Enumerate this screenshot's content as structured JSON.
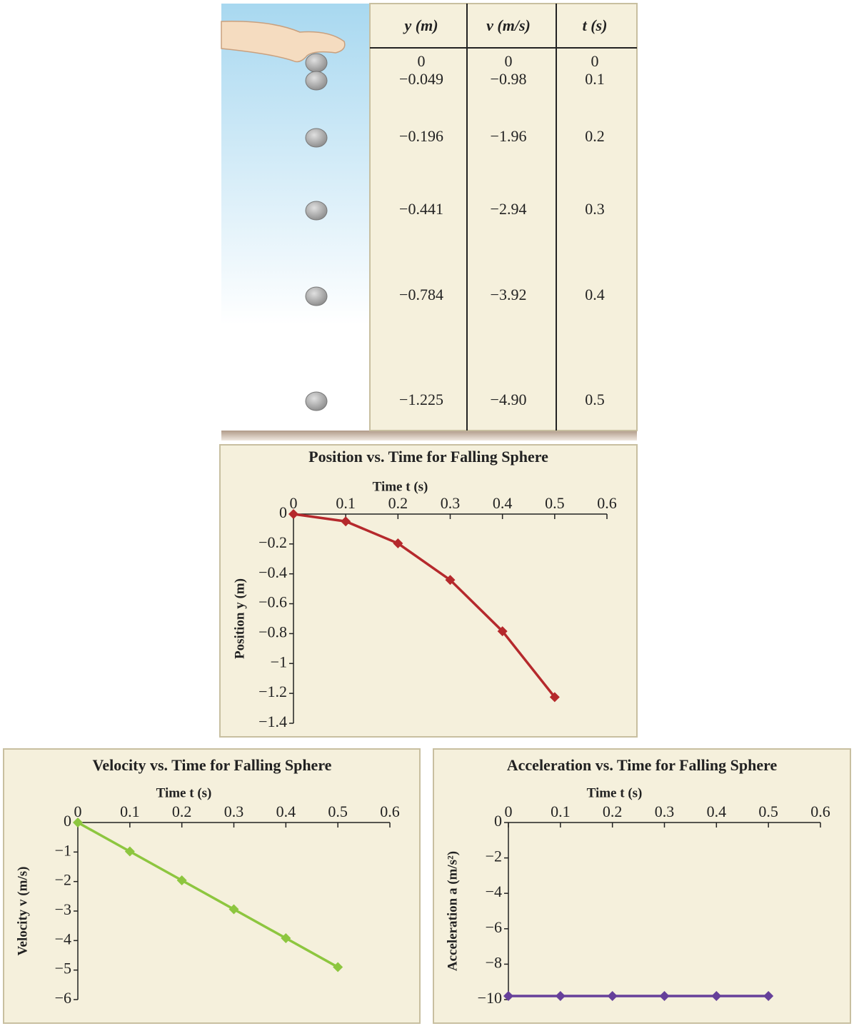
{
  "table": {
    "columns": [
      "y (m)",
      "v (m/s)",
      "t (s)"
    ],
    "rows": [
      [
        "0",
        "0",
        "0"
      ],
      [
        "−0.049",
        "−0.98",
        "0.1"
      ],
      [
        "−0.196",
        "−1.96",
        "0.2"
      ],
      [
        "−0.441",
        "−2.94",
        "0.3"
      ],
      [
        "−0.784",
        "−3.92",
        "0.4"
      ],
      [
        "−1.225",
        "−4.90",
        "0.5"
      ]
    ]
  },
  "chart_data": [
    {
      "type": "line",
      "title": "Position vs. Time for Falling Sphere",
      "xlabel": "Time t (s)",
      "ylabel": "Position y (m)",
      "x": [
        0,
        0.1,
        0.2,
        0.3,
        0.4,
        0.5
      ],
      "series": [
        {
          "color": "#b5292c",
          "marker": "diamond",
          "values": [
            0,
            -0.049,
            -0.196,
            -0.441,
            -0.784,
            -1.225
          ]
        }
      ],
      "xlim": [
        0,
        0.6
      ],
      "xticks": [
        0,
        0.1,
        0.2,
        0.3,
        0.4,
        0.5,
        0.6
      ],
      "ylim": [
        -1.4,
        0
      ],
      "yticks": [
        0,
        {
          "value": -0.2,
          "label": "−0.2"
        },
        {
          "value": -0.4,
          "label": "−0.4"
        },
        {
          "value": -0.6,
          "label": "−0.6"
        },
        {
          "value": -0.8,
          "label": "−0.8"
        },
        {
          "value": -1,
          "label": "−1"
        },
        {
          "value": -1.2,
          "label": "−1.2"
        },
        {
          "value": -1.4,
          "label": "−1.4"
        }
      ]
    },
    {
      "type": "line",
      "title": "Velocity vs. Time for Falling Sphere",
      "xlabel": "Time t (s)",
      "ylabel": "Velocity v (m/s)",
      "x": [
        0,
        0.1,
        0.2,
        0.3,
        0.4,
        0.5
      ],
      "series": [
        {
          "color": "#8dc63f",
          "marker": "diamond",
          "values": [
            0,
            -0.98,
            -1.96,
            -2.94,
            -3.92,
            -4.9
          ]
        }
      ],
      "xlim": [
        0,
        0.6
      ],
      "xticks": [
        0,
        0.1,
        0.2,
        0.3,
        0.4,
        0.5,
        0.6
      ],
      "ylim": [
        -6,
        0
      ],
      "yticks": [
        0,
        {
          "value": -1,
          "label": "−1"
        },
        {
          "value": -2,
          "label": "−2"
        },
        {
          "value": -3,
          "label": "−3"
        },
        {
          "value": -4,
          "label": "−4"
        },
        {
          "value": -5,
          "label": "−5"
        },
        {
          "value": -6,
          "label": "−6"
        }
      ]
    },
    {
      "type": "line",
      "title": "Acceleration vs. Time for Falling Sphere",
      "xlabel": "Time t (s)",
      "ylabel": "Acceleration a (m/s²)",
      "x": [
        0,
        0.1,
        0.2,
        0.3,
        0.4,
        0.5
      ],
      "series": [
        {
          "color": "#66409a",
          "marker": "diamond",
          "values": [
            -9.8,
            -9.8,
            -9.8,
            -9.8,
            -9.8,
            -9.8
          ]
        }
      ],
      "xlim": [
        0,
        0.6
      ],
      "xticks": [
        0,
        0.1,
        0.2,
        0.3,
        0.4,
        0.5,
        0.6
      ],
      "ylim": [
        -10,
        0
      ],
      "yticks": [
        0,
        {
          "value": -2,
          "label": "−2"
        },
        {
          "value": -4,
          "label": "−4"
        },
        {
          "value": -6,
          "label": "−6"
        },
        {
          "value": -8,
          "label": "−8"
        },
        {
          "value": -10,
          "label": "−10"
        }
      ]
    }
  ]
}
